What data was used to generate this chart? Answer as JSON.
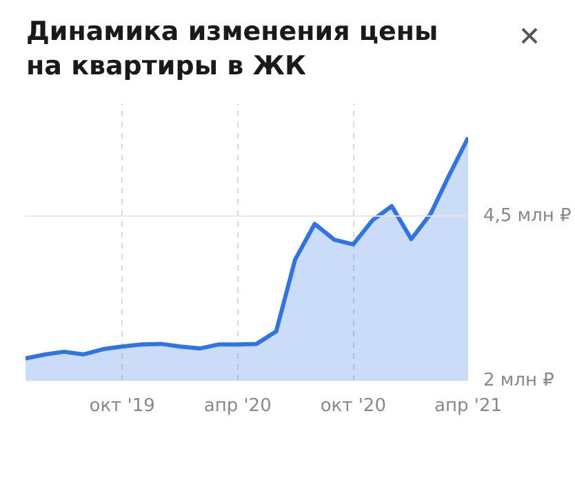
{
  "chart_data": {
    "type": "area",
    "title": "Динамика изменения цены на квартиры в ЖК",
    "x": [
      "2019-05",
      "2019-06",
      "2019-07",
      "2019-08",
      "2019-09",
      "2019-10",
      "2019-11",
      "2019-12",
      "2020-01",
      "2020-02",
      "2020-03",
      "2020-04",
      "2020-05",
      "2020-06",
      "2020-07",
      "2020-08",
      "2020-09",
      "2020-10",
      "2020-11",
      "2020-12",
      "2021-01",
      "2021-02",
      "2021-03",
      "2021-04"
    ],
    "series": [
      {
        "color": "#2f74e6",
        "values": [
          2.34,
          2.4,
          2.44,
          2.4,
          2.48,
          2.52,
          2.55,
          2.56,
          2.52,
          2.49,
          2.55,
          2.55,
          2.56,
          2.75,
          3.84,
          4.38,
          4.14,
          4.07,
          4.44,
          4.65,
          4.15,
          4.54,
          5.1,
          5.69
        ]
      }
    ],
    "xlim": [
      "2019-05",
      "2021-04"
    ],
    "xticks": [
      {
        "value": "2019-10",
        "label": "окт '19"
      },
      {
        "value": "2020-04",
        "label": "апр '20"
      },
      {
        "value": "2020-10",
        "label": "окт '20"
      },
      {
        "value": "2021-04",
        "label": "апр '21"
      }
    ],
    "ylim": [
      2,
      6.2
    ],
    "yticks": [
      {
        "value": 2,
        "label": "2 млн ₽"
      },
      {
        "value": 4.5,
        "label": "4,5 млн ₽"
      }
    ],
    "ref_lines": [
      {
        "axis": "y",
        "value": 4.5,
        "color": "#e6e6e6"
      }
    ],
    "grid": "x",
    "marker": "none",
    "line_style": "solid"
  }
}
